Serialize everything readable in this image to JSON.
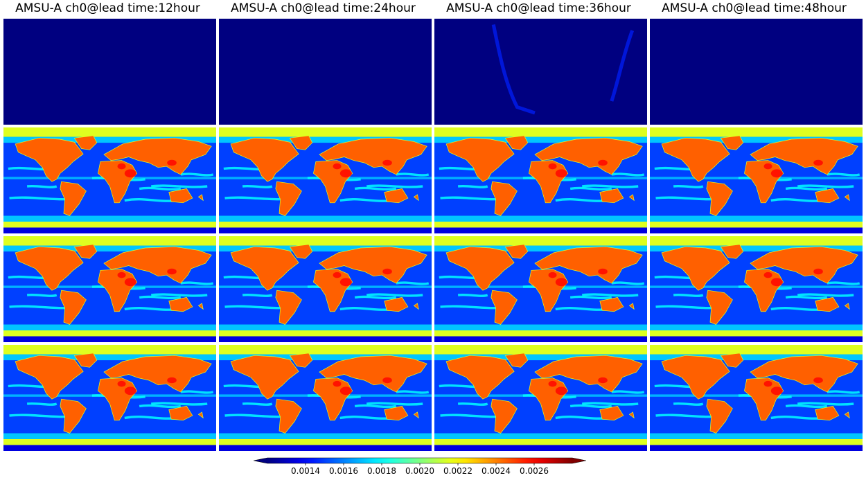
{
  "chart_data": {
    "type": "heatmap",
    "layout": "4 rows x 4 columns grid of global maps (plate carree projection), shared horizontal colorbar",
    "columns": [
      {
        "title": "AMSU-A ch0@lead time:12hour"
      },
      {
        "title": "AMSU-A ch0@lead time:24hour"
      },
      {
        "title": "AMSU-A ch0@lead time:36hour"
      },
      {
        "title": "AMSU-A ch0@lead time:48hour"
      }
    ],
    "rows": [
      {
        "panels": [
          {
            "pattern": "uniform-low",
            "description": "entire map at minimum value"
          },
          {
            "pattern": "uniform-low",
            "description": "entire map at minimum value"
          },
          {
            "pattern": "mostly-low-with-faint-streaks",
            "description": "minimum value with faint brighter streaks"
          },
          {
            "pattern": "uniform-low",
            "description": "entire map at minimum value"
          }
        ]
      },
      {
        "panels": [
          {
            "pattern": "land-high-ocean-low",
            "description": "land ~0.0024-0.0026, ocean ~0.0014-0.0018, polar bands ~0.0020-0.0022"
          },
          {
            "pattern": "land-high-ocean-low"
          },
          {
            "pattern": "land-high-ocean-low"
          },
          {
            "pattern": "land-high-ocean-low"
          }
        ]
      },
      {
        "panels": [
          {
            "pattern": "land-high-ocean-low"
          },
          {
            "pattern": "land-high-ocean-low"
          },
          {
            "pattern": "land-high-ocean-low"
          },
          {
            "pattern": "land-high-ocean-low"
          }
        ]
      },
      {
        "panels": [
          {
            "pattern": "land-high-ocean-low"
          },
          {
            "pattern": "land-high-ocean-low"
          },
          {
            "pattern": "land-high-ocean-low"
          },
          {
            "pattern": "land-high-ocean-low"
          }
        ]
      }
    ],
    "colorbar": {
      "colormap": "jet",
      "orientation": "horizontal",
      "extend": "both",
      "vmin": 0.0012,
      "vmax": 0.0028,
      "ticks": [
        "0.0014",
        "0.0016",
        "0.0018",
        "0.0020",
        "0.0022",
        "0.0024",
        "0.0026"
      ],
      "tick_values": [
        0.0014,
        0.0016,
        0.0018,
        0.002,
        0.0022,
        0.0024,
        0.0026
      ]
    },
    "value_levels": {
      "deep_ocean": 0.00135,
      "ocean": 0.0015,
      "ocean_streak": 0.0018,
      "polar_band": 0.00215,
      "land": 0.00245,
      "land_hot": 0.0026,
      "minimum": 0.0012
    }
  }
}
